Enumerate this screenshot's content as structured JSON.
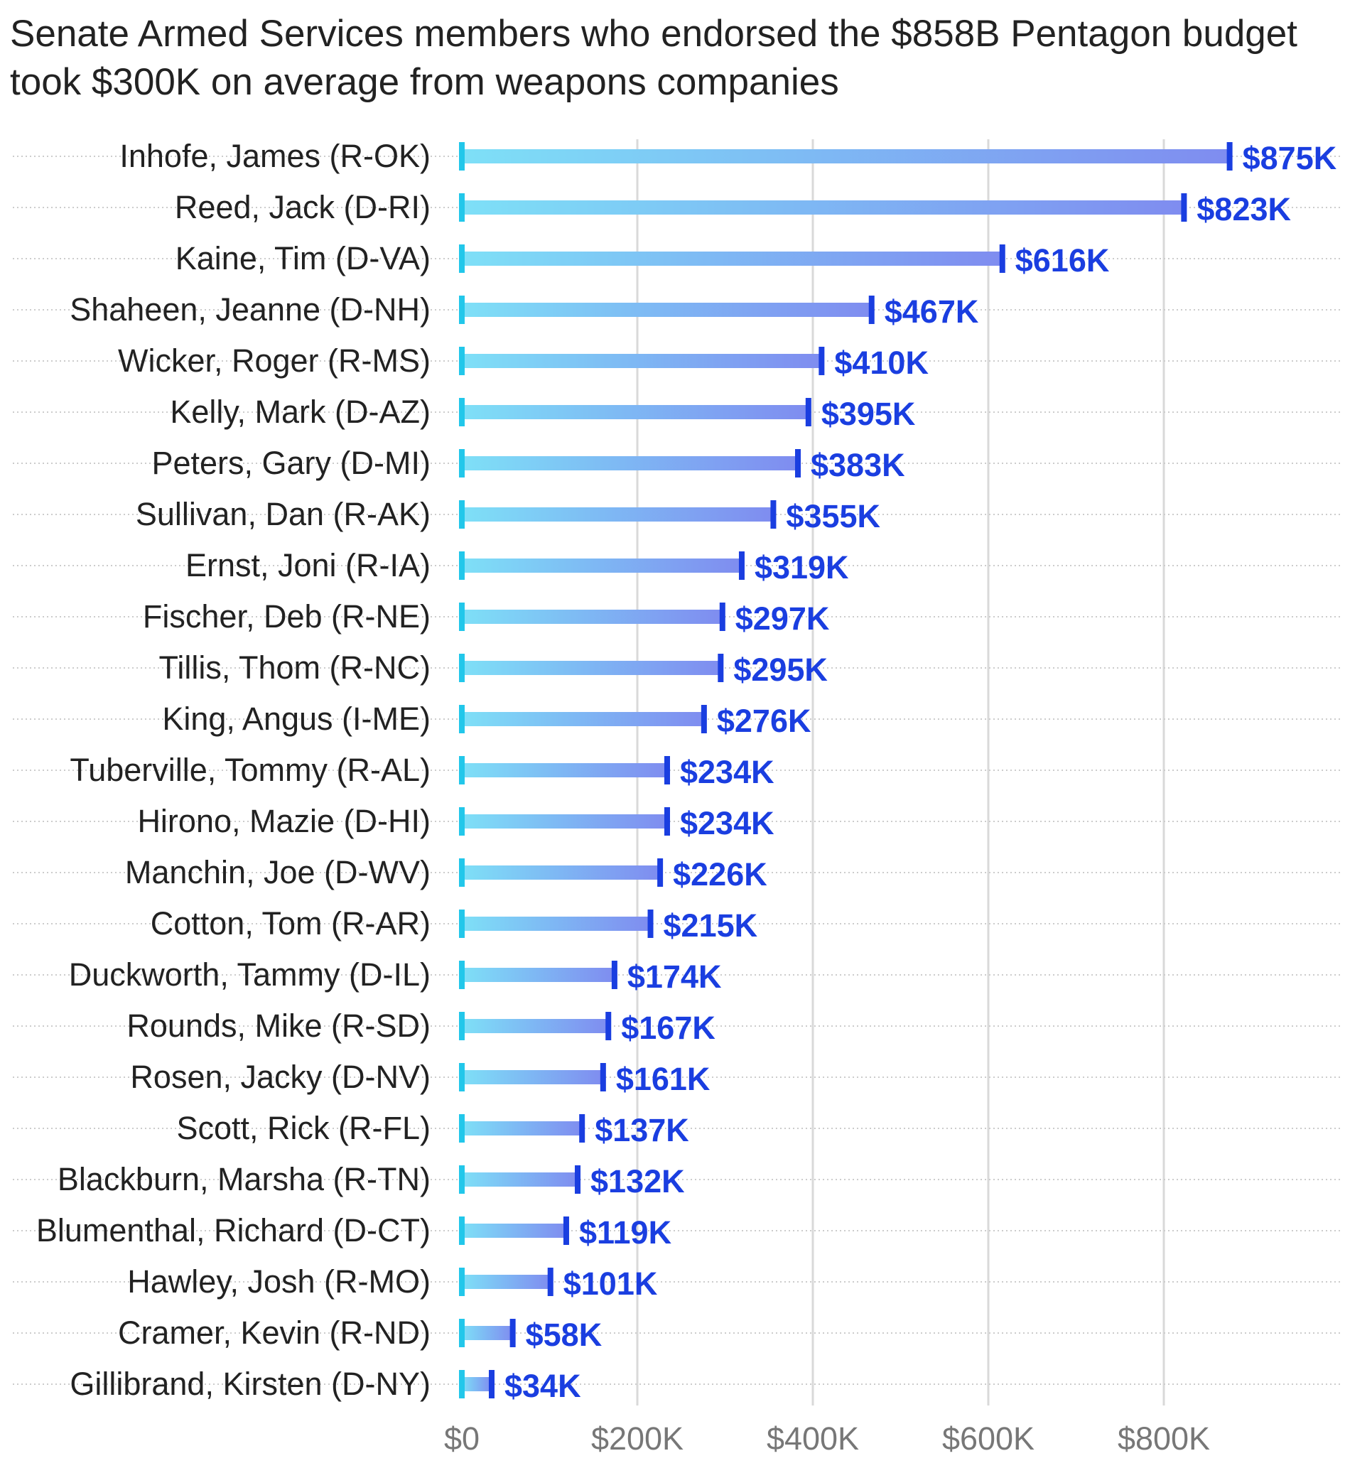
{
  "chart_data": {
    "type": "bar",
    "orientation": "horizontal",
    "title": "Senate Armed Services members who endorsed the $858B Pentagon budget took $300K on average from weapons companies",
    "title_lines": [
      "Senate Armed Services members who endorsed the $858B Pentagon budget",
      "took $300K on average from weapons companies"
    ],
    "xlabel": "",
    "ylabel": "",
    "categories": [
      "Inhofe, James (R-OK)",
      "Reed, Jack (D-RI)",
      "Kaine, Tim (D-VA)",
      "Shaheen, Jeanne (D-NH)",
      "Wicker, Roger (R-MS)",
      "Kelly, Mark (D-AZ)",
      "Peters, Gary (D-MI)",
      "Sullivan, Dan (R-AK)",
      "Ernst, Joni (R-IA)",
      "Fischer, Deb (R-NE)",
      "Tillis, Thom (R-NC)",
      "King, Angus (I-ME)",
      "Tuberville, Tommy (R-AL)",
      "Hirono, Mazie (D-HI)",
      "Manchin, Joe (D-WV)",
      "Cotton, Tom (R-AR)",
      "Duckworth, Tammy (D-IL)",
      "Rounds, Mike (R-SD)",
      "Rosen, Jacky (D-NV)",
      "Scott, Rick (R-FL)",
      "Blackburn, Marsha (R-TN)",
      "Blumenthal, Richard (D-CT)",
      "Hawley, Josh (R-MO)",
      "Cramer, Kevin (R-ND)",
      "Gillibrand, Kirsten (D-NY)"
    ],
    "values": [
      875000,
      823000,
      616000,
      467000,
      410000,
      395000,
      383000,
      355000,
      319000,
      297000,
      295000,
      276000,
      234000,
      234000,
      226000,
      215000,
      174000,
      167000,
      161000,
      137000,
      132000,
      119000,
      101000,
      58000,
      34000
    ],
    "value_labels": [
      "$875K",
      "$823K",
      "$616K",
      "$467K",
      "$410K",
      "$395K",
      "$383K",
      "$355K",
      "$319K",
      "$297K",
      "$295K",
      "$276K",
      "$234K",
      "$234K",
      "$226K",
      "$215K",
      "$174K",
      "$167K",
      "$161K",
      "$137K",
      "$132K",
      "$119K",
      "$101K",
      "$58K",
      "$34K"
    ],
    "xlim": [
      0,
      1000000
    ],
    "x_ticks": [
      0,
      200000,
      400000,
      600000,
      800000
    ],
    "x_tick_labels": [
      "$0",
      "$200K",
      "$400K",
      "$600K",
      "$800K"
    ],
    "grid": true,
    "legend": "none",
    "colors": {
      "bar_start": "#7ee0f7",
      "bar_end": "#7f8cf0",
      "end_tick": "#1a3ee0",
      "value_label": "#1a3ee0",
      "zero_marker": "#22c7ea",
      "gridline": "#d9d9d9",
      "row_guide": "#cccccc"
    }
  }
}
